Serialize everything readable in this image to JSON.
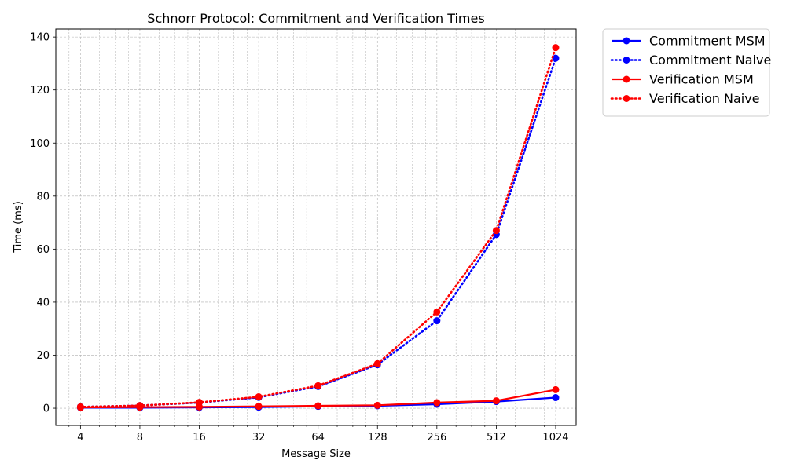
{
  "chart_data": {
    "type": "line",
    "title": "Schnorr Protocol: Commitment and Verification Times",
    "xlabel": "Message Size",
    "ylabel": "Time (ms)",
    "x_scale": "log2",
    "x": [
      4,
      8,
      16,
      32,
      64,
      128,
      256,
      512,
      1024
    ],
    "x_tick_labels": [
      "4",
      "8",
      "16",
      "32",
      "64",
      "128",
      "256",
      "512",
      "1024"
    ],
    "xlim": [
      3.0,
      1300
    ],
    "ylim": [
      -6.5,
      143
    ],
    "y_ticks": [
      0,
      20,
      40,
      60,
      80,
      100,
      120,
      140
    ],
    "y_tick_labels": [
      "0",
      "20",
      "40",
      "60",
      "80",
      "100",
      "120",
      "140"
    ],
    "grid": true,
    "legend_position": "outside-top-right",
    "series": [
      {
        "name": "Commitment MSM",
        "color": "#0000ff",
        "style": "solid",
        "values": [
          0.2,
          0.2,
          0.3,
          0.4,
          0.7,
          0.9,
          1.5,
          2.5,
          4.0
        ]
      },
      {
        "name": "Commitment Naive",
        "color": "#0000ff",
        "style": "dotted",
        "values": [
          0.5,
          1.0,
          2.1,
          4.1,
          8.2,
          16.4,
          33.0,
          65.5,
          132.0
        ]
      },
      {
        "name": "Verification MSM",
        "color": "#ff0000",
        "style": "solid",
        "values": [
          0.3,
          0.4,
          0.5,
          0.7,
          0.9,
          1.1,
          2.1,
          2.8,
          7.0
        ]
      },
      {
        "name": "Verification Naive",
        "color": "#ff0000",
        "style": "dotted",
        "values": [
          0.5,
          1.0,
          2.2,
          4.3,
          8.5,
          16.8,
          36.3,
          67.0,
          136.0
        ]
      }
    ]
  }
}
